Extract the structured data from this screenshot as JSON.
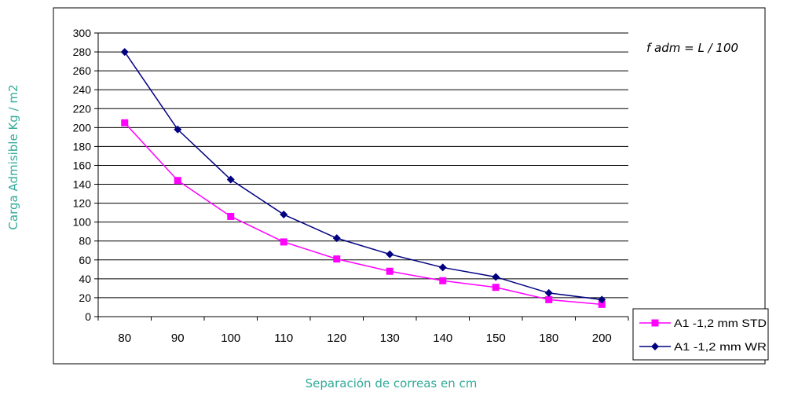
{
  "chart_data": {
    "type": "line",
    "ylabel": "Carga Admisible  Kg / m2",
    "xlabel": "Separación de correas en cm",
    "annotation": "f adm  = L / 100",
    "categories": [
      "80",
      "90",
      "100",
      "110",
      "120",
      "130",
      "140",
      "150",
      "180",
      "200"
    ],
    "ylim": [
      0,
      300
    ],
    "yticks": [
      0,
      20,
      40,
      60,
      80,
      100,
      120,
      140,
      160,
      180,
      200,
      220,
      240,
      260,
      280,
      300
    ],
    "grid": true,
    "legend_position": "bottom-right",
    "series": [
      {
        "name": "A1 -1,2 mm STD",
        "color": "#FF00FF",
        "marker": "square",
        "values": [
          205,
          144,
          106,
          79,
          61,
          48,
          38,
          31,
          18,
          13
        ]
      },
      {
        "name": "A1 -1,2 mm WR",
        "color": "#000080",
        "marker": "diamond",
        "values": [
          280,
          198,
          145,
          108,
          83,
          66,
          52,
          42,
          25,
          18
        ]
      }
    ],
    "colors": {
      "axis_label": "#33AA99",
      "annotation": "#000000",
      "frame": "#000000"
    }
  }
}
